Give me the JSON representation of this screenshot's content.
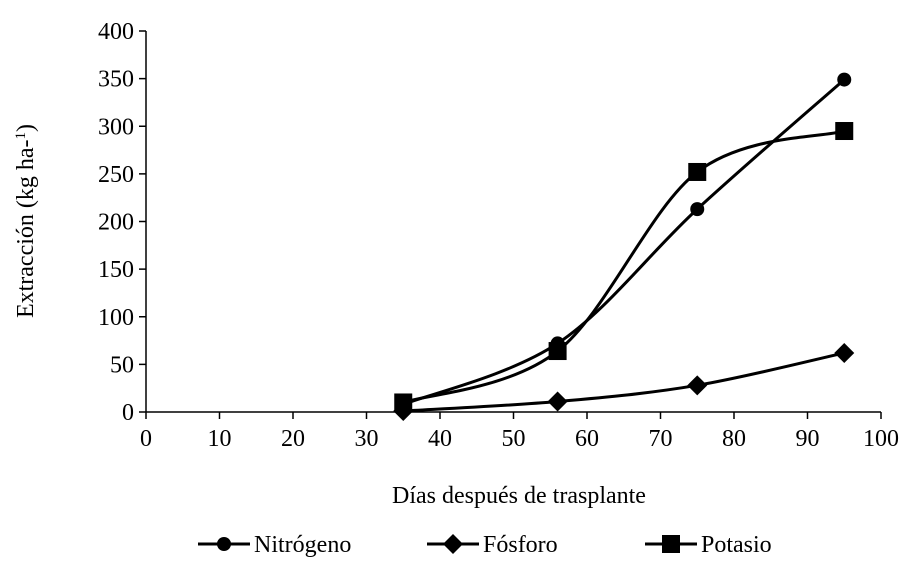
{
  "chart_data": {
    "type": "line",
    "xlabel": "Días después de trasplante",
    "ylabel_main": "Extracción (kg ha-",
    "ylabel_sup": "1",
    "ylabel_close": ")",
    "xlim": [
      0,
      100
    ],
    "ylim": [
      0,
      400
    ],
    "x_ticks": [
      0,
      10,
      20,
      30,
      40,
      50,
      60,
      70,
      80,
      90,
      100
    ],
    "y_ticks": [
      0,
      50,
      100,
      150,
      200,
      250,
      300,
      350,
      400
    ],
    "grid": false,
    "legend_position": "bottom",
    "x": [
      35,
      56,
      75,
      95
    ],
    "series": [
      {
        "name": "Nitrógeno",
        "marker": "circle",
        "color": "#000000",
        "values": [
          8,
          72,
          213,
          349
        ]
      },
      {
        "name": "Fósforo",
        "marker": "diamond",
        "color": "#000000",
        "values": [
          1,
          11,
          28,
          62
        ]
      },
      {
        "name": "Potasio",
        "marker": "square",
        "color": "#000000",
        "values": [
          10,
          64,
          252,
          295
        ]
      }
    ]
  }
}
